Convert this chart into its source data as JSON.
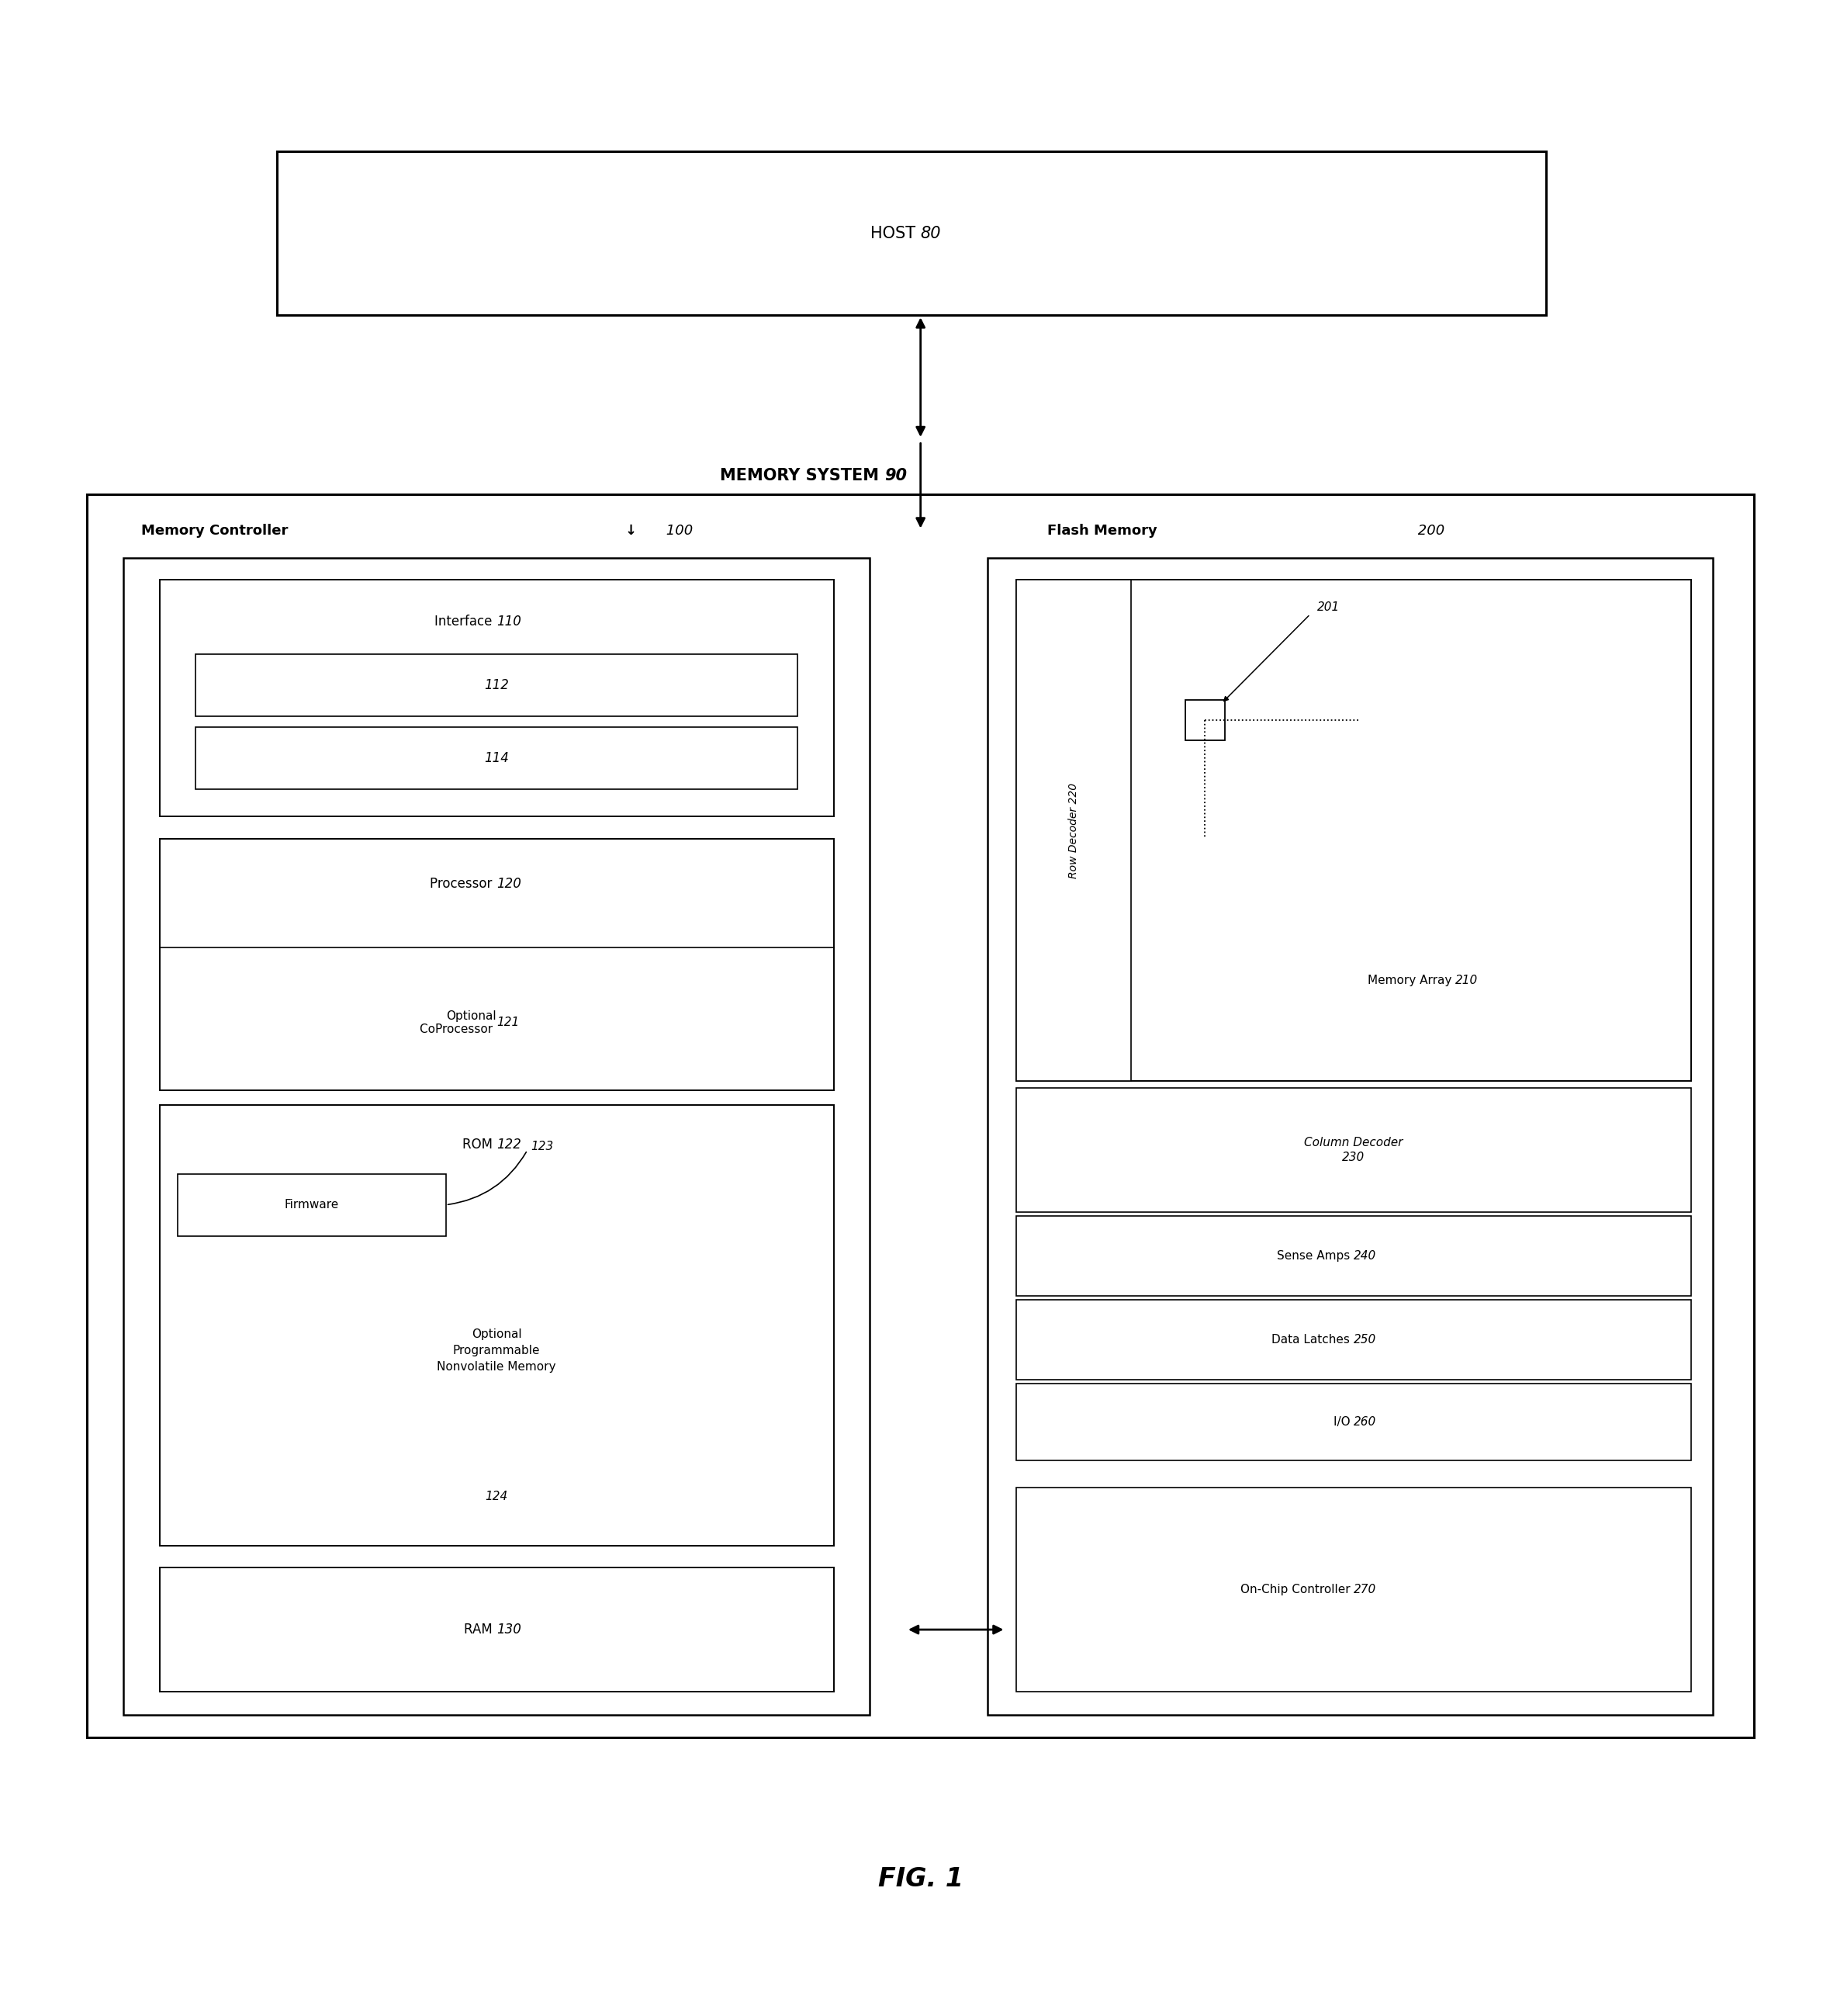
{
  "bg_color": "#ffffff",
  "fig_width": 23.5,
  "fig_height": 25.98,
  "host_label": "HOST",
  "host_num": "80",
  "memory_system_label": "MEMORY SYSTEM",
  "memory_system_num": "90",
  "memory_controller_label": "Memory Controller",
  "memory_controller_num": "100",
  "flash_memory_label": "Flash Memory",
  "flash_memory_num": "200",
  "interface_label": "Interface",
  "interface_num": "110",
  "box112": "112",
  "box114": "114",
  "processor_label": "Processor",
  "processor_num": "120",
  "coprocessor_label": "Optional\nCoProcessor",
  "coprocessor_num": "121",
  "rom_label": "ROM",
  "rom_num": "122",
  "firmware_label": "Firmware",
  "firmware_num": "123",
  "nonvol_label": "Optional\nProgrammable\nNonvolatile Memory",
  "nonvol_num": "124",
  "ram_label": "RAM",
  "ram_num": "130",
  "row_decoder_label": "Row Decoder",
  "row_decoder_num": "220",
  "memory_array_label": "Memory Array",
  "memory_array_num": "210",
  "cell_num": "201",
  "column_decoder_label": "Column Decoder",
  "column_decoder_num": "230",
  "sense_amps_label": "Sense Amps",
  "sense_amps_num": "240",
  "data_latches_label": "Data Latches",
  "data_latches_num": "250",
  "io_label": "I/O",
  "io_num": "260",
  "on_chip_label": "On-Chip Controller",
  "on_chip_num": "270",
  "fig_title": "FIG. 1"
}
